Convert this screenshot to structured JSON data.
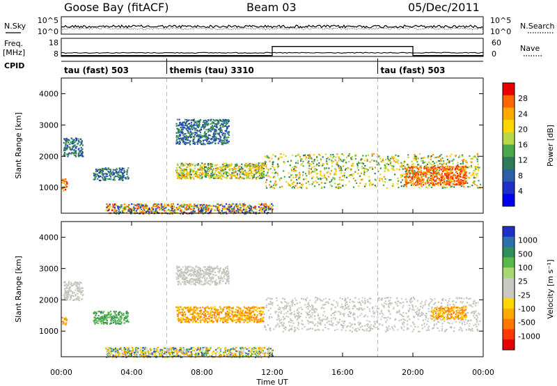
{
  "header": {
    "station": "Goose Bay (fitACF)",
    "beam": "Beam 03",
    "date": "05/Dec/2011"
  },
  "side_labels": {
    "nsky": "N.Sky",
    "nsearch": "N.Search",
    "freq": "Freq.",
    "freq_unit": "[MHz]",
    "nave": "Nave",
    "cpid": "CPID"
  },
  "noise_panel": {
    "left_ticks": [
      "10^5",
      "10^0"
    ],
    "right_ticks": [
      "10^5",
      "10^0"
    ]
  },
  "freq_panel": {
    "left_ticks": [
      "18",
      "8"
    ],
    "right_ticks": [
      "60",
      "0"
    ],
    "freq_level_mhz": 10,
    "nave_normal": 3,
    "nave_high": 33,
    "nave_high_start_h": 12.0,
    "nave_high_end_h": 20.0
  },
  "cpid_segments": [
    {
      "label": "tau (fast) 503",
      "start_h": 0
    },
    {
      "label": "themis (tau) 3310",
      "start_h": 6
    },
    {
      "label": "tau (fast) 503",
      "start_h": 18
    }
  ],
  "chart_data": [
    {
      "type": "heatmap",
      "parameter": "power",
      "ylabel": "Slant Range [km]",
      "xlabel": "Time UT",
      "x_ticks": [
        "00:00",
        "04:00",
        "08:00",
        "12:00",
        "16:00",
        "20:00",
        "00:00"
      ],
      "x_range_hours": [
        0,
        24
      ],
      "y_ticks": [
        1000,
        2000,
        3000,
        4000
      ],
      "y_range_km": [
        180,
        4500
      ],
      "colorbar": {
        "label": "Power [dB]",
        "ticks": [
          "28",
          "24",
          "20",
          "16",
          "12",
          "8",
          "4"
        ],
        "colors": [
          "#e60000",
          "#ff6600",
          "#ffaa00",
          "#ffd700",
          "#b8d84a",
          "#4aa84a",
          "#2f7a5a",
          "#2e5fa8",
          "#1f2fc8",
          "#0000ee"
        ]
      },
      "echo_regions": [
        {
          "t0": 0.0,
          "t1": 0.3,
          "r0": 900,
          "r1": 1300,
          "value": "high"
        },
        {
          "t0": 0.1,
          "t1": 1.2,
          "r0": 2000,
          "r1": 2600,
          "value": "low"
        },
        {
          "t0": 1.8,
          "t1": 3.8,
          "r0": 1250,
          "r1": 1650,
          "value": "low"
        },
        {
          "t0": 6.5,
          "t1": 11.5,
          "r0": 1300,
          "r1": 1800,
          "value": "mid"
        },
        {
          "t0": 6.5,
          "t1": 9.5,
          "r0": 2400,
          "r1": 3200,
          "value": "low"
        },
        {
          "t0": 11.5,
          "t1": 23.8,
          "r0": 1000,
          "r1": 2100,
          "value": "mid"
        },
        {
          "t0": 19.5,
          "t1": 23.0,
          "r0": 1100,
          "r1": 1700,
          "value": "high"
        },
        {
          "t0": 2.5,
          "t1": 12.0,
          "r0": 180,
          "r1": 500,
          "value": "ground"
        }
      ]
    },
    {
      "type": "heatmap",
      "parameter": "velocity",
      "ylabel": "Slant Range [km]",
      "xlabel": "Time UT",
      "x_ticks": [
        "00:00",
        "04:00",
        "08:00",
        "12:00",
        "16:00",
        "20:00",
        "00:00"
      ],
      "x_range_hours": [
        0,
        24
      ],
      "y_ticks": [
        1000,
        2000,
        3000,
        4000
      ],
      "y_range_km": [
        180,
        4500
      ],
      "colorbar": {
        "label": "Velocity [m s⁻¹]",
        "ticks": [
          "1000",
          "500",
          "100",
          "25",
          "-25",
          "-100",
          "-500",
          "-1000"
        ],
        "colors": [
          "#1f2fc8",
          "#2e6fb0",
          "#2f8f5a",
          "#5ab84a",
          "#a8d870",
          "#c8c8c0",
          "#c8c8c0",
          "#ffd700",
          "#ffaa00",
          "#ff7700",
          "#ff3a00",
          "#e60000"
        ]
      },
      "echo_regions": [
        {
          "t0": 0.0,
          "t1": 0.3,
          "r0": 1200,
          "r1": 1500,
          "value": "orange"
        },
        {
          "t0": 0.1,
          "t1": 1.2,
          "r0": 2000,
          "r1": 2600,
          "value": "grey"
        },
        {
          "t0": 1.8,
          "t1": 3.8,
          "r0": 1250,
          "r1": 1650,
          "value": "green"
        },
        {
          "t0": 6.5,
          "t1": 11.5,
          "r0": 1300,
          "r1": 1800,
          "value": "orange"
        },
        {
          "t0": 6.5,
          "t1": 9.5,
          "r0": 2500,
          "r1": 3100,
          "value": "grey"
        },
        {
          "t0": 11.5,
          "t1": 23.8,
          "r0": 1000,
          "r1": 2100,
          "value": "grey"
        },
        {
          "t0": 21.0,
          "t1": 23.0,
          "r0": 1400,
          "r1": 1800,
          "value": "orange"
        },
        {
          "t0": 2.5,
          "t1": 12.0,
          "r0": 180,
          "r1": 500,
          "value": "ground"
        }
      ]
    }
  ]
}
